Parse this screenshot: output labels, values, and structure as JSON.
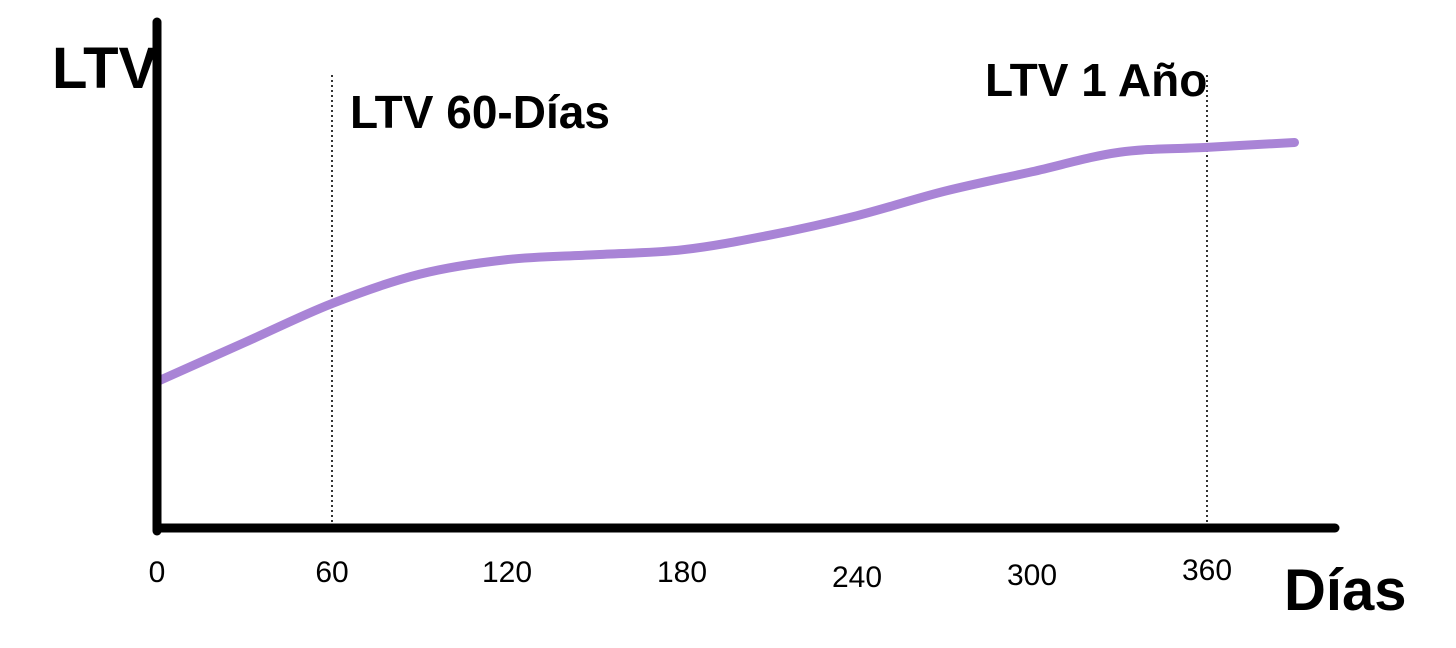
{
  "chart_data": {
    "type": "line",
    "title": "",
    "ylabel": "LTV",
    "xlabel": "Días",
    "x_ticks": [
      "0",
      "60",
      "120",
      "180",
      "240",
      "300",
      "360"
    ],
    "xlim": [
      0,
      390
    ],
    "ylim": [
      0,
      100
    ],
    "grid": false,
    "legend": "none",
    "series": [
      {
        "color": "#a984d6",
        "x": [
          0,
          30,
          60,
          90,
          120,
          150,
          180,
          210,
          240,
          270,
          300,
          330,
          360,
          390
        ],
        "y": [
          30,
          38,
          46,
          52,
          55,
          56,
          57,
          60,
          64,
          69,
          73,
          77,
          78,
          79
        ]
      }
    ],
    "annotations": [
      {
        "x": 60,
        "label": "LTV 60-Días",
        "style": "dotted-vertical"
      },
      {
        "x": 360,
        "label": "LTV 1 Año",
        "style": "dotted-vertical"
      }
    ],
    "axis_color": "#000000"
  }
}
